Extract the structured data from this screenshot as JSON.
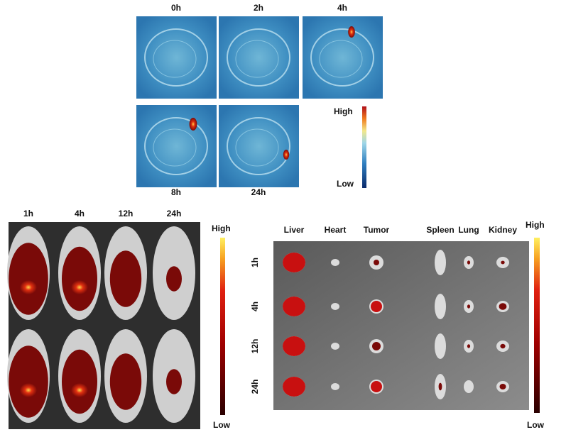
{
  "photoacoustic": {
    "time_labels": [
      "0h",
      "2h",
      "4h",
      "8h",
      "24h"
    ],
    "scale": {
      "high": "High",
      "low": "Low"
    }
  },
  "in_vivo": {
    "time_labels": [
      "1h",
      "4h",
      "12h",
      "24h"
    ],
    "scale": {
      "high": "High",
      "low": "Low"
    }
  },
  "ex_vivo": {
    "organs": [
      "Liver",
      "Heart",
      "Tumor",
      "Spleen",
      "Lung",
      "Kidney"
    ],
    "time_labels": [
      "1h",
      "4h",
      "12h",
      "24h"
    ],
    "scale": {
      "high": "High",
      "low": "Low"
    }
  }
}
